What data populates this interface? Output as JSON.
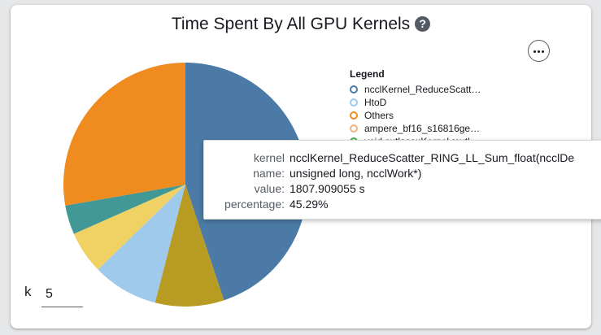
{
  "header": {
    "title": "Time Spent By All GPU Kernels",
    "help_icon": "question-circle-icon",
    "more_icon": "ellipsis-icon"
  },
  "chart_data": {
    "type": "pie",
    "title": "Time Spent By All GPU Kernels",
    "slices": [
      {
        "name": "ncclKernel_ReduceScatter_RING_LL_Sum_float(ncclDe",
        "percentage": 45.29,
        "color": "#4b7aa6"
      },
      {
        "name": "",
        "percentage": 9.2,
        "color": "#b89b22"
      },
      {
        "name": "HtoD",
        "percentage": 8.8,
        "color": "#9fcaec"
      },
      {
        "name": "",
        "percentage": 5.7,
        "color": "#f0d264"
      },
      {
        "name": "",
        "percentage": 3.9,
        "color": "#419896"
      },
      {
        "name": "Others",
        "percentage": 28.01,
        "color": "#f08b1f"
      }
    ],
    "legend_position": "right"
  },
  "legend": {
    "title": "Legend",
    "items": [
      {
        "label": "ncclKernel_ReduceScatt…",
        "color": "#4b7aa6"
      },
      {
        "label": "HtoD",
        "color": "#9fcaec"
      },
      {
        "label": "Others",
        "color": "#f08b1f"
      },
      {
        "label": "ampere_bf16_s16816ge…",
        "color": "#f4b183"
      },
      {
        "label": "void cutlass::Kernel<cutl…",
        "color": "#4fa84f"
      }
    ]
  },
  "tooltip": {
    "kernel_label": "kernel",
    "kernel_value": "ncclKernel_ReduceScatter_RING_LL_Sum_float(ncclDe",
    "name_label": "name:",
    "name_value": "unsigned long, ncclWork*)",
    "value_label": "value:",
    "value_value": "1807.909055 s",
    "percentage_label": "percentage:",
    "percentage_value": "45.29%"
  },
  "k_control": {
    "label": "k",
    "value": "5"
  }
}
